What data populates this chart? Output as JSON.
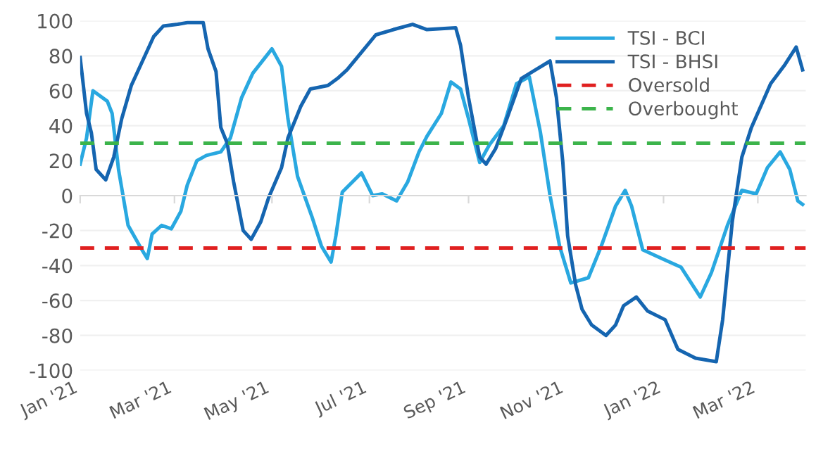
{
  "chart_data": {
    "type": "line",
    "ylim": [
      -100,
      100
    ],
    "yticks": [
      -100,
      -80,
      -60,
      -40,
      -20,
      0,
      20,
      40,
      60,
      80,
      100
    ],
    "xlim": [
      "2021-01-01",
      "2022-03-31"
    ],
    "xticks": [
      {
        "value": "2021-01-01",
        "label": "Jan '21"
      },
      {
        "value": "2021-03-01",
        "label": "Mar '21"
      },
      {
        "value": "2021-05-01",
        "label": "May '21"
      },
      {
        "value": "2021-07-01",
        "label": "Jul '21"
      },
      {
        "value": "2021-09-01",
        "label": "Sep '21"
      },
      {
        "value": "2021-11-01",
        "label": "Nov '21"
      },
      {
        "value": "2022-01-01",
        "label": "Jan '22"
      },
      {
        "value": "2022-03-01",
        "label": "Mar '22"
      }
    ],
    "grid": "y",
    "legend": "top right",
    "marker": "none",
    "line_style": "solid",
    "series": [
      {
        "name": "TSI - BCI",
        "color": "#29a8e0",
        "x": [
          "2021-01-01",
          "2021-01-05",
          "2021-01-09",
          "2021-01-18",
          "2021-01-21",
          "2021-01-25",
          "2021-01-31",
          "2021-02-08",
          "2021-02-12",
          "2021-02-15",
          "2021-02-21",
          "2021-02-27",
          "2021-03-05",
          "2021-03-09",
          "2021-03-15",
          "2021-03-21",
          "2021-03-30",
          "2021-04-05",
          "2021-04-12",
          "2021-04-19",
          "2021-05-01",
          "2021-05-07",
          "2021-05-11",
          "2021-05-17",
          "2021-05-26",
          "2021-06-01",
          "2021-06-07",
          "2021-06-10",
          "2021-06-14",
          "2021-06-26",
          "2021-07-03",
          "2021-07-09",
          "2021-07-18",
          "2021-07-25",
          "2021-08-01",
          "2021-08-06",
          "2021-08-15",
          "2021-08-21",
          "2021-08-27",
          "2021-09-01",
          "2021-09-08",
          "2021-09-14",
          "2021-09-23",
          "2021-10-01",
          "2021-10-09",
          "2021-10-16",
          "2021-10-22",
          "2021-10-28",
          "2021-11-04",
          "2021-11-15",
          "2021-11-23",
          "2021-12-02",
          "2021-12-08",
          "2021-12-12",
          "2021-12-19",
          "2021-12-31",
          "2022-01-12",
          "2022-01-24",
          "2022-01-31",
          "2022-02-10",
          "2022-02-19",
          "2022-02-28",
          "2022-03-07",
          "2022-03-15",
          "2022-03-21",
          "2022-03-26",
          "2022-03-29"
        ],
        "values": [
          18,
          33,
          60,
          54,
          47,
          15,
          -17,
          -30,
          -36,
          -22,
          -17,
          -19,
          -9,
          6,
          20,
          23,
          25,
          33,
          56,
          70,
          84,
          74,
          44,
          11,
          -12,
          -29,
          -38,
          -23,
          2,
          13,
          0,
          1,
          -3,
          8,
          25,
          34,
          47,
          65,
          61,
          44,
          19,
          29,
          40,
          64,
          68,
          36,
          0,
          -29,
          -50,
          -47,
          -29,
          -6,
          3,
          -6,
          -31,
          -36,
          -41,
          -58,
          -44,
          -17,
          3,
          1,
          16,
          25,
          15,
          -3,
          -5
        ]
      },
      {
        "name": "TSI - BHSI",
        "color": "#1565b0",
        "x": [
          "2021-01-01",
          "2021-01-05",
          "2021-01-08",
          "2021-01-11",
          "2021-01-17",
          "2021-01-22",
          "2021-01-27",
          "2021-02-02",
          "2021-02-08",
          "2021-02-16",
          "2021-02-22",
          "2021-03-03",
          "2021-03-09",
          "2021-03-19",
          "2021-03-22",
          "2021-03-27",
          "2021-03-30",
          "2021-04-03",
          "2021-04-07",
          "2021-04-13",
          "2021-04-18",
          "2021-04-24",
          "2021-04-29",
          "2021-05-07",
          "2021-05-11",
          "2021-05-19",
          "2021-05-25",
          "2021-06-05",
          "2021-06-11",
          "2021-06-17",
          "2021-06-26",
          "2021-07-05",
          "2021-07-16",
          "2021-07-28",
          "2021-08-06",
          "2021-08-24",
          "2021-08-27",
          "2021-09-01",
          "2021-09-08",
          "2021-09-12",
          "2021-09-18",
          "2021-09-25",
          "2021-10-04",
          "2021-10-13",
          "2021-10-22",
          "2021-10-26",
          "2021-10-30",
          "2021-11-02",
          "2021-11-07",
          "2021-11-11",
          "2021-11-17",
          "2021-11-26",
          "2021-12-02",
          "2021-12-07",
          "2021-12-15",
          "2021-12-22",
          "2022-01-02",
          "2022-01-10",
          "2022-01-21",
          "2022-02-03",
          "2022-02-07",
          "2022-02-13",
          "2022-02-19",
          "2022-02-25",
          "2022-03-09",
          "2022-03-18",
          "2022-03-25",
          "2022-03-29"
        ],
        "values": [
          79,
          47,
          36,
          15,
          9,
          22,
          44,
          63,
          75,
          91,
          97,
          98,
          99,
          99,
          84,
          71,
          39,
          30,
          8,
          -20,
          -25,
          -15,
          -1,
          16,
          33,
          51,
          61,
          63,
          67,
          72,
          82,
          92,
          95,
          98,
          95,
          96,
          86,
          56,
          22,
          18,
          27,
          44,
          67,
          72,
          77,
          56,
          19,
          -23,
          -51,
          -65,
          -74,
          -80,
          -74,
          -63,
          -58,
          -66,
          -71,
          -88,
          -93,
          -95,
          -71,
          -15,
          22,
          39,
          64,
          75,
          85,
          72
        ]
      }
    ],
    "ref_lines": [
      {
        "axis": "y",
        "value": -30,
        "label": "Oversold",
        "color": "#e02020",
        "line_style": "dashed"
      },
      {
        "axis": "y",
        "value": 30,
        "label": "Overbought",
        "color": "#3cb44b",
        "line_style": "dashed"
      }
    ]
  }
}
